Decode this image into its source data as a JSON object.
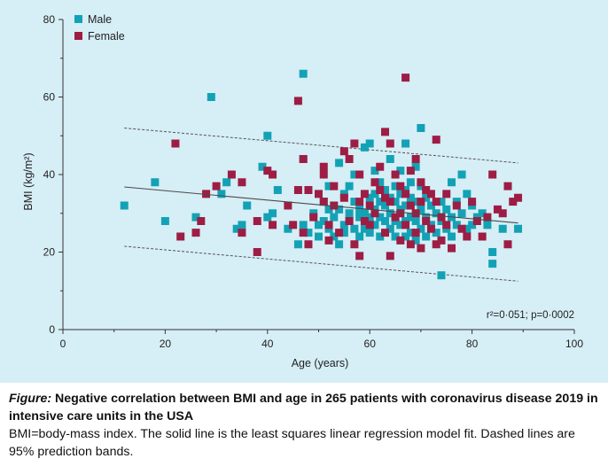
{
  "colors": {
    "male": "#13a2b5",
    "female": "#9d1d44",
    "panel_bg": "#d6eef6",
    "axis": "#333333"
  },
  "chart_data": {
    "type": "scatter",
    "xlabel": "Age (years)",
    "ylabel": "BMI (kg/m²)",
    "xlim": [
      0,
      100
    ],
    "ylim": [
      0,
      80
    ],
    "x_ticks": [
      0,
      20,
      40,
      60,
      80,
      100
    ],
    "y_ticks": [
      0,
      20,
      40,
      60,
      80
    ],
    "legend": [
      {
        "name": "Male",
        "color": "#13a2b5"
      },
      {
        "name": "Female",
        "color": "#9d1d44"
      }
    ],
    "legend_position": "top-left",
    "annotation": "r²=0·051; p=0·0002",
    "regression": {
      "x": [
        12,
        89
      ],
      "y": [
        36.8,
        27.5
      ]
    },
    "prediction_band_upper": {
      "x": [
        12,
        89
      ],
      "y": [
        52,
        43
      ]
    },
    "prediction_band_lower": {
      "x": [
        12,
        89
      ],
      "y": [
        21.5,
        12.5
      ]
    },
    "series": [
      {
        "name": "Male",
        "points": [
          [
            12,
            32
          ],
          [
            18,
            38
          ],
          [
            20,
            28
          ],
          [
            26,
            29
          ],
          [
            29,
            60
          ],
          [
            31,
            35
          ],
          [
            32,
            38
          ],
          [
            34,
            26
          ],
          [
            35,
            27
          ],
          [
            36,
            32
          ],
          [
            39,
            42
          ],
          [
            40,
            50
          ],
          [
            40,
            29
          ],
          [
            41,
            30
          ],
          [
            42,
            36
          ],
          [
            44,
            26
          ],
          [
            46,
            22
          ],
          [
            47,
            66
          ],
          [
            47,
            44
          ],
          [
            47,
            27
          ],
          [
            48,
            25
          ],
          [
            49,
            30
          ],
          [
            50,
            24
          ],
          [
            50,
            27
          ],
          [
            51,
            33
          ],
          [
            51,
            28
          ],
          [
            52,
            26
          ],
          [
            52,
            31
          ],
          [
            52,
            37
          ],
          [
            53,
            29
          ],
          [
            53,
            24
          ],
          [
            54,
            43
          ],
          [
            54,
            31
          ],
          [
            54,
            22
          ],
          [
            55,
            27
          ],
          [
            55,
            35
          ],
          [
            55,
            25
          ],
          [
            56,
            30
          ],
          [
            56,
            28
          ],
          [
            56,
            37
          ],
          [
            57,
            26
          ],
          [
            57,
            33
          ],
          [
            57,
            40
          ],
          [
            58,
            29
          ],
          [
            58,
            31
          ],
          [
            58,
            24
          ],
          [
            59,
            47
          ],
          [
            59,
            30
          ],
          [
            59,
            26
          ],
          [
            60,
            48
          ],
          [
            60,
            34
          ],
          [
            60,
            29
          ],
          [
            60,
            25
          ],
          [
            61,
            41
          ],
          [
            61,
            35
          ],
          [
            61,
            31
          ],
          [
            61,
            27
          ],
          [
            62,
            38
          ],
          [
            62,
            33
          ],
          [
            62,
            29
          ],
          [
            62,
            24
          ],
          [
            63,
            36
          ],
          [
            63,
            32
          ],
          [
            63,
            28
          ],
          [
            64,
            44
          ],
          [
            64,
            34
          ],
          [
            64,
            30
          ],
          [
            64,
            26
          ],
          [
            65,
            37
          ],
          [
            65,
            33
          ],
          [
            65,
            28
          ],
          [
            65,
            24
          ],
          [
            66,
            41
          ],
          [
            66,
            35
          ],
          [
            66,
            31
          ],
          [
            66,
            27
          ],
          [
            67,
            48
          ],
          [
            67,
            36
          ],
          [
            67,
            32
          ],
          [
            67,
            28
          ],
          [
            67,
            24
          ],
          [
            68,
            38
          ],
          [
            68,
            34
          ],
          [
            68,
            29
          ],
          [
            68,
            25
          ],
          [
            69,
            42
          ],
          [
            69,
            33
          ],
          [
            69,
            28
          ],
          [
            69,
            23
          ],
          [
            70,
            52
          ],
          [
            70,
            37
          ],
          [
            70,
            31
          ],
          [
            70,
            26
          ],
          [
            71,
            34
          ],
          [
            71,
            29
          ],
          [
            71,
            24
          ],
          [
            72,
            32
          ],
          [
            72,
            27
          ],
          [
            73,
            30
          ],
          [
            73,
            25
          ],
          [
            74,
            14
          ],
          [
            74,
            33
          ],
          [
            74,
            28
          ],
          [
            75,
            31
          ],
          [
            75,
            26
          ],
          [
            76,
            38
          ],
          [
            76,
            29
          ],
          [
            76,
            24
          ],
          [
            77,
            33
          ],
          [
            77,
            27
          ],
          [
            78,
            40
          ],
          [
            78,
            30
          ],
          [
            79,
            35
          ],
          [
            79,
            26
          ],
          [
            80,
            32
          ],
          [
            80,
            27
          ],
          [
            81,
            29
          ],
          [
            82,
            30
          ],
          [
            83,
            27
          ],
          [
            84,
            20
          ],
          [
            84,
            17
          ],
          [
            86,
            26
          ],
          [
            89,
            26
          ]
        ]
      },
      {
        "name": "Female",
        "points": [
          [
            22,
            48
          ],
          [
            23,
            24
          ],
          [
            26,
            25
          ],
          [
            27,
            28
          ],
          [
            28,
            35
          ],
          [
            30,
            37
          ],
          [
            33,
            40
          ],
          [
            35,
            38
          ],
          [
            35,
            25
          ],
          [
            38,
            20
          ],
          [
            38,
            28
          ],
          [
            40,
            41
          ],
          [
            41,
            40
          ],
          [
            41,
            27
          ],
          [
            44,
            32
          ],
          [
            45,
            27
          ],
          [
            46,
            59
          ],
          [
            46,
            36
          ],
          [
            47,
            44
          ],
          [
            47,
            25
          ],
          [
            48,
            36
          ],
          [
            48,
            22
          ],
          [
            49,
            29
          ],
          [
            50,
            35
          ],
          [
            51,
            42
          ],
          [
            51,
            40
          ],
          [
            51,
            33
          ],
          [
            52,
            27
          ],
          [
            52,
            23
          ],
          [
            53,
            37
          ],
          [
            53,
            32
          ],
          [
            54,
            25
          ],
          [
            55,
            46
          ],
          [
            55,
            34
          ],
          [
            56,
            28
          ],
          [
            56,
            44
          ],
          [
            57,
            48
          ],
          [
            57,
            22
          ],
          [
            58,
            40
          ],
          [
            58,
            33
          ],
          [
            58,
            19
          ],
          [
            59,
            35
          ],
          [
            59,
            28
          ],
          [
            60,
            32
          ],
          [
            60,
            27
          ],
          [
            61,
            38
          ],
          [
            61,
            30
          ],
          [
            62,
            42
          ],
          [
            62,
            36
          ],
          [
            63,
            51
          ],
          [
            63,
            34
          ],
          [
            63,
            25
          ],
          [
            64,
            48
          ],
          [
            64,
            33
          ],
          [
            64,
            19
          ],
          [
            65,
            40
          ],
          [
            65,
            29
          ],
          [
            66,
            37
          ],
          [
            66,
            30
          ],
          [
            66,
            23
          ],
          [
            67,
            65
          ],
          [
            67,
            35
          ],
          [
            67,
            27
          ],
          [
            68,
            41
          ],
          [
            68,
            32
          ],
          [
            68,
            22
          ],
          [
            69,
            44
          ],
          [
            69,
            30
          ],
          [
            69,
            25
          ],
          [
            70,
            38
          ],
          [
            70,
            33
          ],
          [
            70,
            21
          ],
          [
            71,
            36
          ],
          [
            71,
            28
          ],
          [
            72,
            35
          ],
          [
            72,
            26
          ],
          [
            73,
            49
          ],
          [
            73,
            33
          ],
          [
            73,
            22
          ],
          [
            74,
            29
          ],
          [
            74,
            23
          ],
          [
            75,
            35
          ],
          [
            75,
            27
          ],
          [
            76,
            21
          ],
          [
            77,
            32
          ],
          [
            78,
            26
          ],
          [
            79,
            24
          ],
          [
            80,
            33
          ],
          [
            81,
            28
          ],
          [
            82,
            24
          ],
          [
            83,
            29
          ],
          [
            84,
            40
          ],
          [
            85,
            31
          ],
          [
            86,
            30
          ],
          [
            87,
            22
          ],
          [
            87,
            37
          ],
          [
            88,
            33
          ],
          [
            89,
            34
          ]
        ]
      }
    ]
  },
  "caption": {
    "label": "Figure:",
    "title": " Negative correlation between BMI and age in 265 patients with coronavirus disease 2019 in intensive care units in the USA",
    "note": "BMI=body-mass index. The solid line is the least squares linear regression model fit. Dashed lines are 95% prediction bands."
  }
}
